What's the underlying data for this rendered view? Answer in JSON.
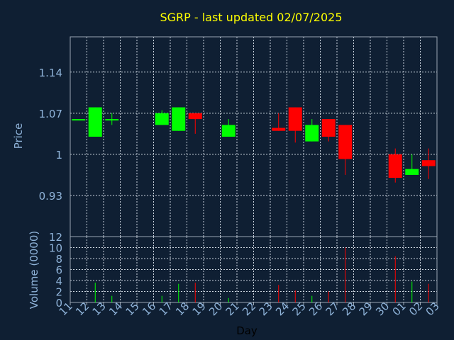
{
  "chart_data": {
    "type": "candlestick",
    "title": "SGRP - last updated 02/07/2025",
    "xlabel": "Day",
    "ylabel_price": "Price",
    "ylabel_volume": "Volume (0000)",
    "x_ticks": [
      "11",
      "12",
      "13",
      "14",
      "15",
      "16",
      "17",
      "18",
      "19",
      "20",
      "21",
      "22",
      "23",
      "24",
      "25",
      "26",
      "27",
      "28",
      "29",
      "30",
      "01",
      "02",
      "03"
    ],
    "price_ticks": [
      "0.93",
      "1",
      "1.07",
      "1.14"
    ],
    "price_ylim": [
      0.86,
      1.2
    ],
    "volume_ticks": [
      "0",
      "2",
      "4",
      "6",
      "8",
      "10",
      "12"
    ],
    "volume_ylim": [
      0,
      12
    ],
    "grid": true,
    "colors": {
      "background": "#0f1f33",
      "up": "#00ff00",
      "down": "#ff0000",
      "title": "#ffff00",
      "axis_text": "#8fb3d9"
    },
    "candles": [
      {
        "day": "11",
        "open": 1.06,
        "high": 1.06,
        "low": 1.06,
        "close": 1.06,
        "volume": 0
      },
      {
        "day": "12",
        "open": 1.03,
        "high": 1.08,
        "low": 1.03,
        "close": 1.08,
        "volume": 3.6
      },
      {
        "day": "13",
        "open": 1.06,
        "high": 1.07,
        "low": 1.05,
        "close": 1.06,
        "volume": 1.2
      },
      {
        "day": "16",
        "open": 1.05,
        "high": 1.075,
        "low": 1.05,
        "close": 1.07,
        "volume": 1.2
      },
      {
        "day": "17",
        "open": 1.04,
        "high": 1.08,
        "low": 1.04,
        "close": 1.08,
        "volume": 3.4
      },
      {
        "day": "18",
        "open": 1.07,
        "high": 1.07,
        "low": 1.035,
        "close": 1.06,
        "volume": 3.6
      },
      {
        "day": "20",
        "open": 1.03,
        "high": 1.06,
        "low": 1.03,
        "close": 1.05,
        "volume": 0.8
      },
      {
        "day": "23",
        "open": 1.045,
        "high": 1.07,
        "low": 1.04,
        "close": 1.04,
        "volume": 3.2
      },
      {
        "day": "24",
        "open": 1.08,
        "high": 1.08,
        "low": 1.02,
        "close": 1.04,
        "volume": 2.2
      },
      {
        "day": "25",
        "open": 1.022,
        "high": 1.06,
        "low": 1.022,
        "close": 1.05,
        "volume": 1.2
      },
      {
        "day": "26",
        "open": 1.06,
        "high": 1.06,
        "low": 1.022,
        "close": 1.03,
        "volume": 2.0
      },
      {
        "day": "27",
        "open": 1.05,
        "high": 1.05,
        "low": 0.965,
        "close": 0.992,
        "volume": 10.0
      },
      {
        "day": "30",
        "open": 1.0,
        "high": 1.01,
        "low": 0.952,
        "close": 0.96,
        "volume": 8.4
      },
      {
        "day": "01",
        "open": 0.965,
        "high": 1.0,
        "low": 0.965,
        "close": 0.975,
        "volume": 3.8
      },
      {
        "day": "02",
        "open": 0.99,
        "high": 1.01,
        "low": 0.958,
        "close": 0.98,
        "volume": 3.4
      }
    ]
  }
}
